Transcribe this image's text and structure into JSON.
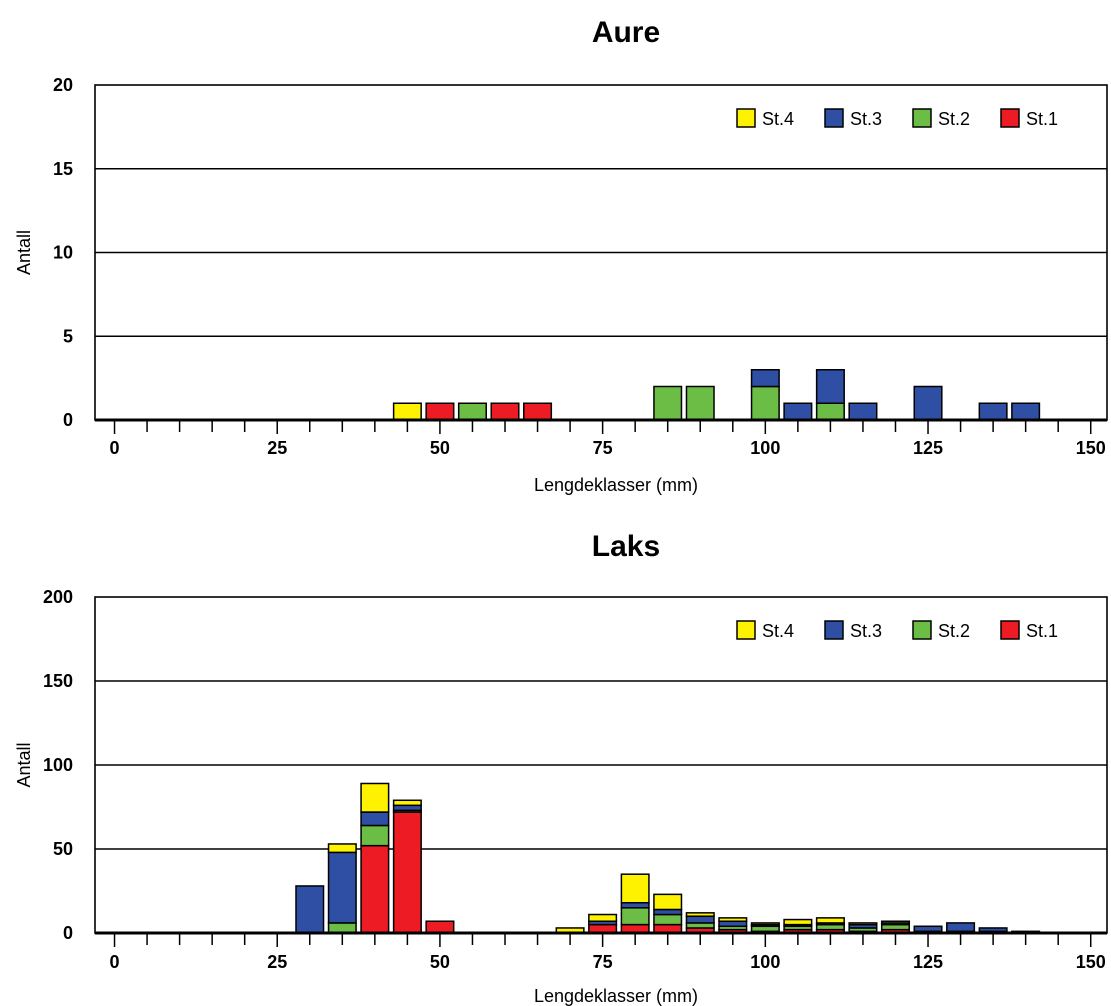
{
  "chart_data": [
    {
      "type": "bar",
      "stacked": true,
      "title": "Aure",
      "xlabel": "Lengdeklasser (mm)",
      "ylabel": "Antall",
      "ylim": [
        0,
        20
      ],
      "yticks": [
        0,
        5,
        10,
        15,
        20
      ],
      "xlim": [
        -3,
        152.5
      ],
      "xticks": [
        0,
        25,
        50,
        75,
        100,
        125,
        150
      ],
      "bin_width": 5,
      "grid": true,
      "legend_position": "top-right",
      "legend": [
        "St.4",
        "St.3",
        "St.2",
        "St.1"
      ],
      "series": [
        {
          "name": "St.1",
          "color": "#ed1c24",
          "values": [
            [
              50,
              1
            ],
            [
              60,
              1
            ],
            [
              65,
              1
            ]
          ]
        },
        {
          "name": "St.2",
          "color": "#6cbd45",
          "values": [
            [
              55,
              1
            ],
            [
              85,
              2
            ],
            [
              90,
              2
            ],
            [
              100,
              2
            ],
            [
              110,
              1
            ]
          ]
        },
        {
          "name": "St.3",
          "color": "#2e4fa4",
          "values": [
            [
              100,
              1
            ],
            [
              105,
              1
            ],
            [
              110,
              2
            ],
            [
              115,
              1
            ],
            [
              125,
              2
            ],
            [
              135,
              1
            ],
            [
              140,
              1
            ]
          ]
        },
        {
          "name": "St.4",
          "color": "#fff200",
          "values": [
            [
              45,
              1
            ]
          ]
        }
      ]
    },
    {
      "type": "bar",
      "stacked": true,
      "title": "Laks",
      "xlabel": "Lengdeklasser (mm)",
      "ylabel": "Antall",
      "ylim": [
        0,
        200
      ],
      "yticks": [
        0,
        50,
        100,
        150,
        200
      ],
      "xlim": [
        -3,
        152.5
      ],
      "xticks": [
        0,
        25,
        50,
        75,
        100,
        125,
        150
      ],
      "bin_width": 5,
      "grid": true,
      "legend_position": "top-right",
      "legend": [
        "St.4",
        "St.3",
        "St.2",
        "St.1"
      ],
      "series": [
        {
          "name": "St.1",
          "color": "#ed1c24",
          "values": [
            [
              40,
              52
            ],
            [
              45,
              72
            ],
            [
              50,
              7
            ],
            [
              75,
              5
            ],
            [
              80,
              5
            ],
            [
              85,
              5
            ],
            [
              90,
              3
            ],
            [
              95,
              2
            ],
            [
              100,
              1
            ],
            [
              105,
              2
            ],
            [
              110,
              2
            ],
            [
              115,
              1
            ],
            [
              120,
              2
            ],
            [
              125,
              1
            ],
            [
              130,
              1
            ],
            [
              135,
              1
            ]
          ]
        },
        {
          "name": "St.2",
          "color": "#6cbd45",
          "values": [
            [
              35,
              6
            ],
            [
              40,
              12
            ],
            [
              45,
              1
            ],
            [
              80,
              10
            ],
            [
              85,
              6
            ],
            [
              90,
              3
            ],
            [
              95,
              2
            ],
            [
              100,
              3
            ],
            [
              105,
              2
            ],
            [
              110,
              3
            ],
            [
              115,
              2
            ],
            [
              120,
              3
            ]
          ]
        },
        {
          "name": "St.3",
          "color": "#2e4fa4",
          "values": [
            [
              30,
              28
            ],
            [
              35,
              42
            ],
            [
              40,
              8
            ],
            [
              45,
              3
            ],
            [
              75,
              2
            ],
            [
              80,
              3
            ],
            [
              85,
              3
            ],
            [
              90,
              4
            ],
            [
              95,
              3
            ],
            [
              100,
              1
            ],
            [
              105,
              1
            ],
            [
              110,
              1
            ],
            [
              115,
              2
            ],
            [
              120,
              1
            ],
            [
              125,
              3
            ],
            [
              130,
              5
            ],
            [
              135,
              2
            ],
            [
              140,
              1
            ]
          ]
        },
        {
          "name": "St.4",
          "color": "#fff200",
          "values": [
            [
              35,
              5
            ],
            [
              40,
              17
            ],
            [
              45,
              3
            ],
            [
              70,
              3
            ],
            [
              75,
              4
            ],
            [
              80,
              17
            ],
            [
              85,
              9
            ],
            [
              90,
              2
            ],
            [
              95,
              2
            ],
            [
              100,
              1
            ],
            [
              105,
              3
            ],
            [
              110,
              3
            ],
            [
              115,
              1
            ],
            [
              120,
              1
            ]
          ]
        }
      ]
    }
  ]
}
